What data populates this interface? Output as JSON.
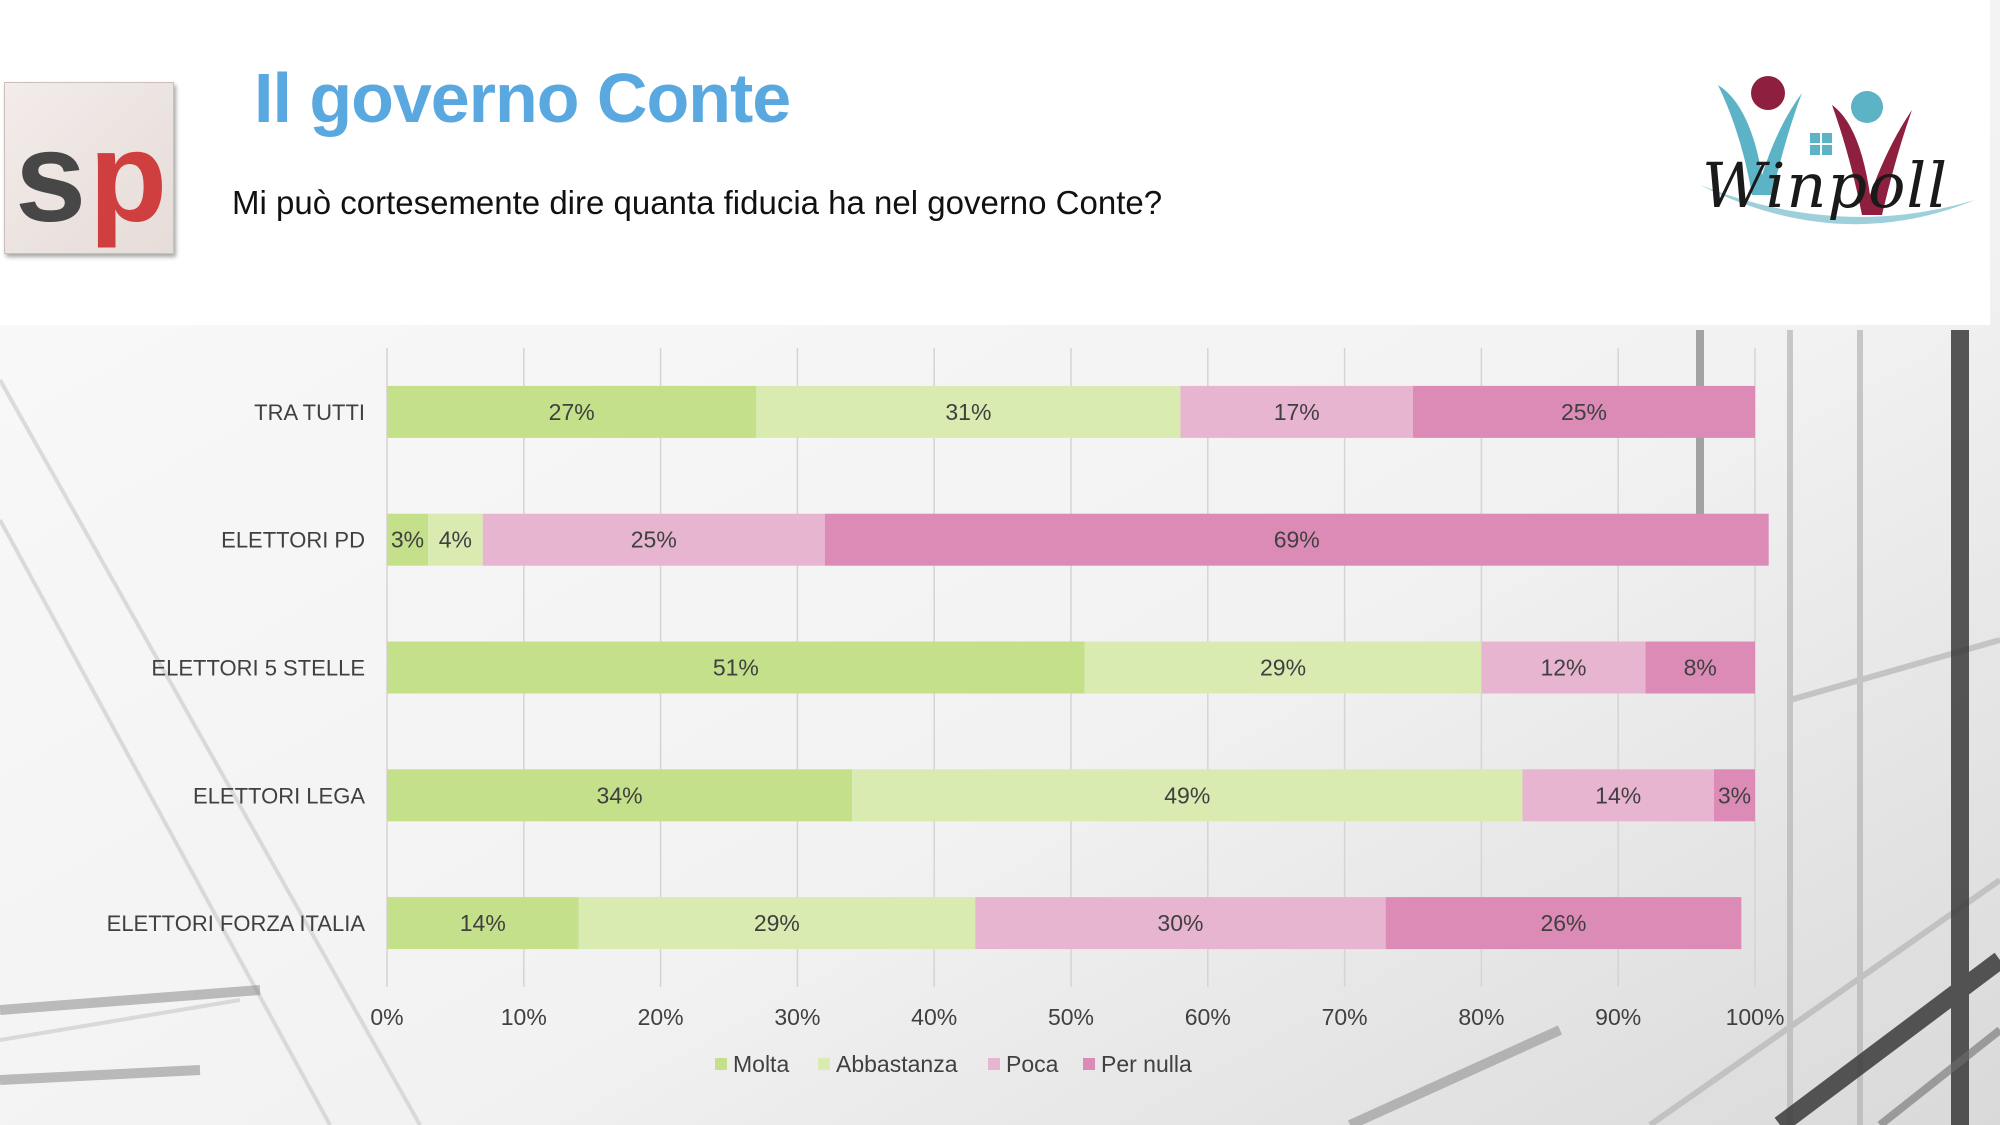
{
  "header": {
    "title": "Il governo Conte",
    "question": "Mi può cortesemente dire quanta fiducia ha nel governo Conte?",
    "left_logo": {
      "text_s": "s",
      "text_p": "p",
      "icon": "sp-logo-icon"
    },
    "right_logo": {
      "text": "Winpoll",
      "icon": "winpoll-logo-icon"
    }
  },
  "colors": {
    "title": "#5aa8e0",
    "molta": "#c5e08a",
    "abbastanza": "#d9ebb1",
    "poca": "#e8b5d1",
    "per_nulla": "#dc8bb7"
  },
  "chart_data": {
    "type": "bar",
    "orientation": "horizontal",
    "stacked": "percent",
    "categories": [
      "TRA TUTTI",
      "ELETTORI PD",
      "ELETTORI 5 STELLE",
      "ELETTORI LEGA",
      "ELETTORI FORZA ITALIA"
    ],
    "series": [
      {
        "name": "Molta",
        "color": "#c5e08a",
        "values": [
          27,
          3,
          51,
          34,
          14
        ]
      },
      {
        "name": "Abbastanza",
        "color": "#d9ebb1",
        "values": [
          31,
          4,
          29,
          49,
          29
        ]
      },
      {
        "name": "Poca",
        "color": "#e8b5d1",
        "values": [
          17,
          25,
          12,
          14,
          30
        ]
      },
      {
        "name": "Per nulla",
        "color": "#dc8bb7",
        "values": [
          25,
          69,
          8,
          3,
          26
        ]
      }
    ],
    "xticks": [
      "0%",
      "10%",
      "20%",
      "30%",
      "40%",
      "50%",
      "60%",
      "70%",
      "80%",
      "90%",
      "100%"
    ],
    "xlim": [
      0,
      100
    ],
    "grid": true,
    "legend": "bottom",
    "data_label_suffix": "%",
    "title": "",
    "xlabel": "",
    "ylabel": ""
  }
}
